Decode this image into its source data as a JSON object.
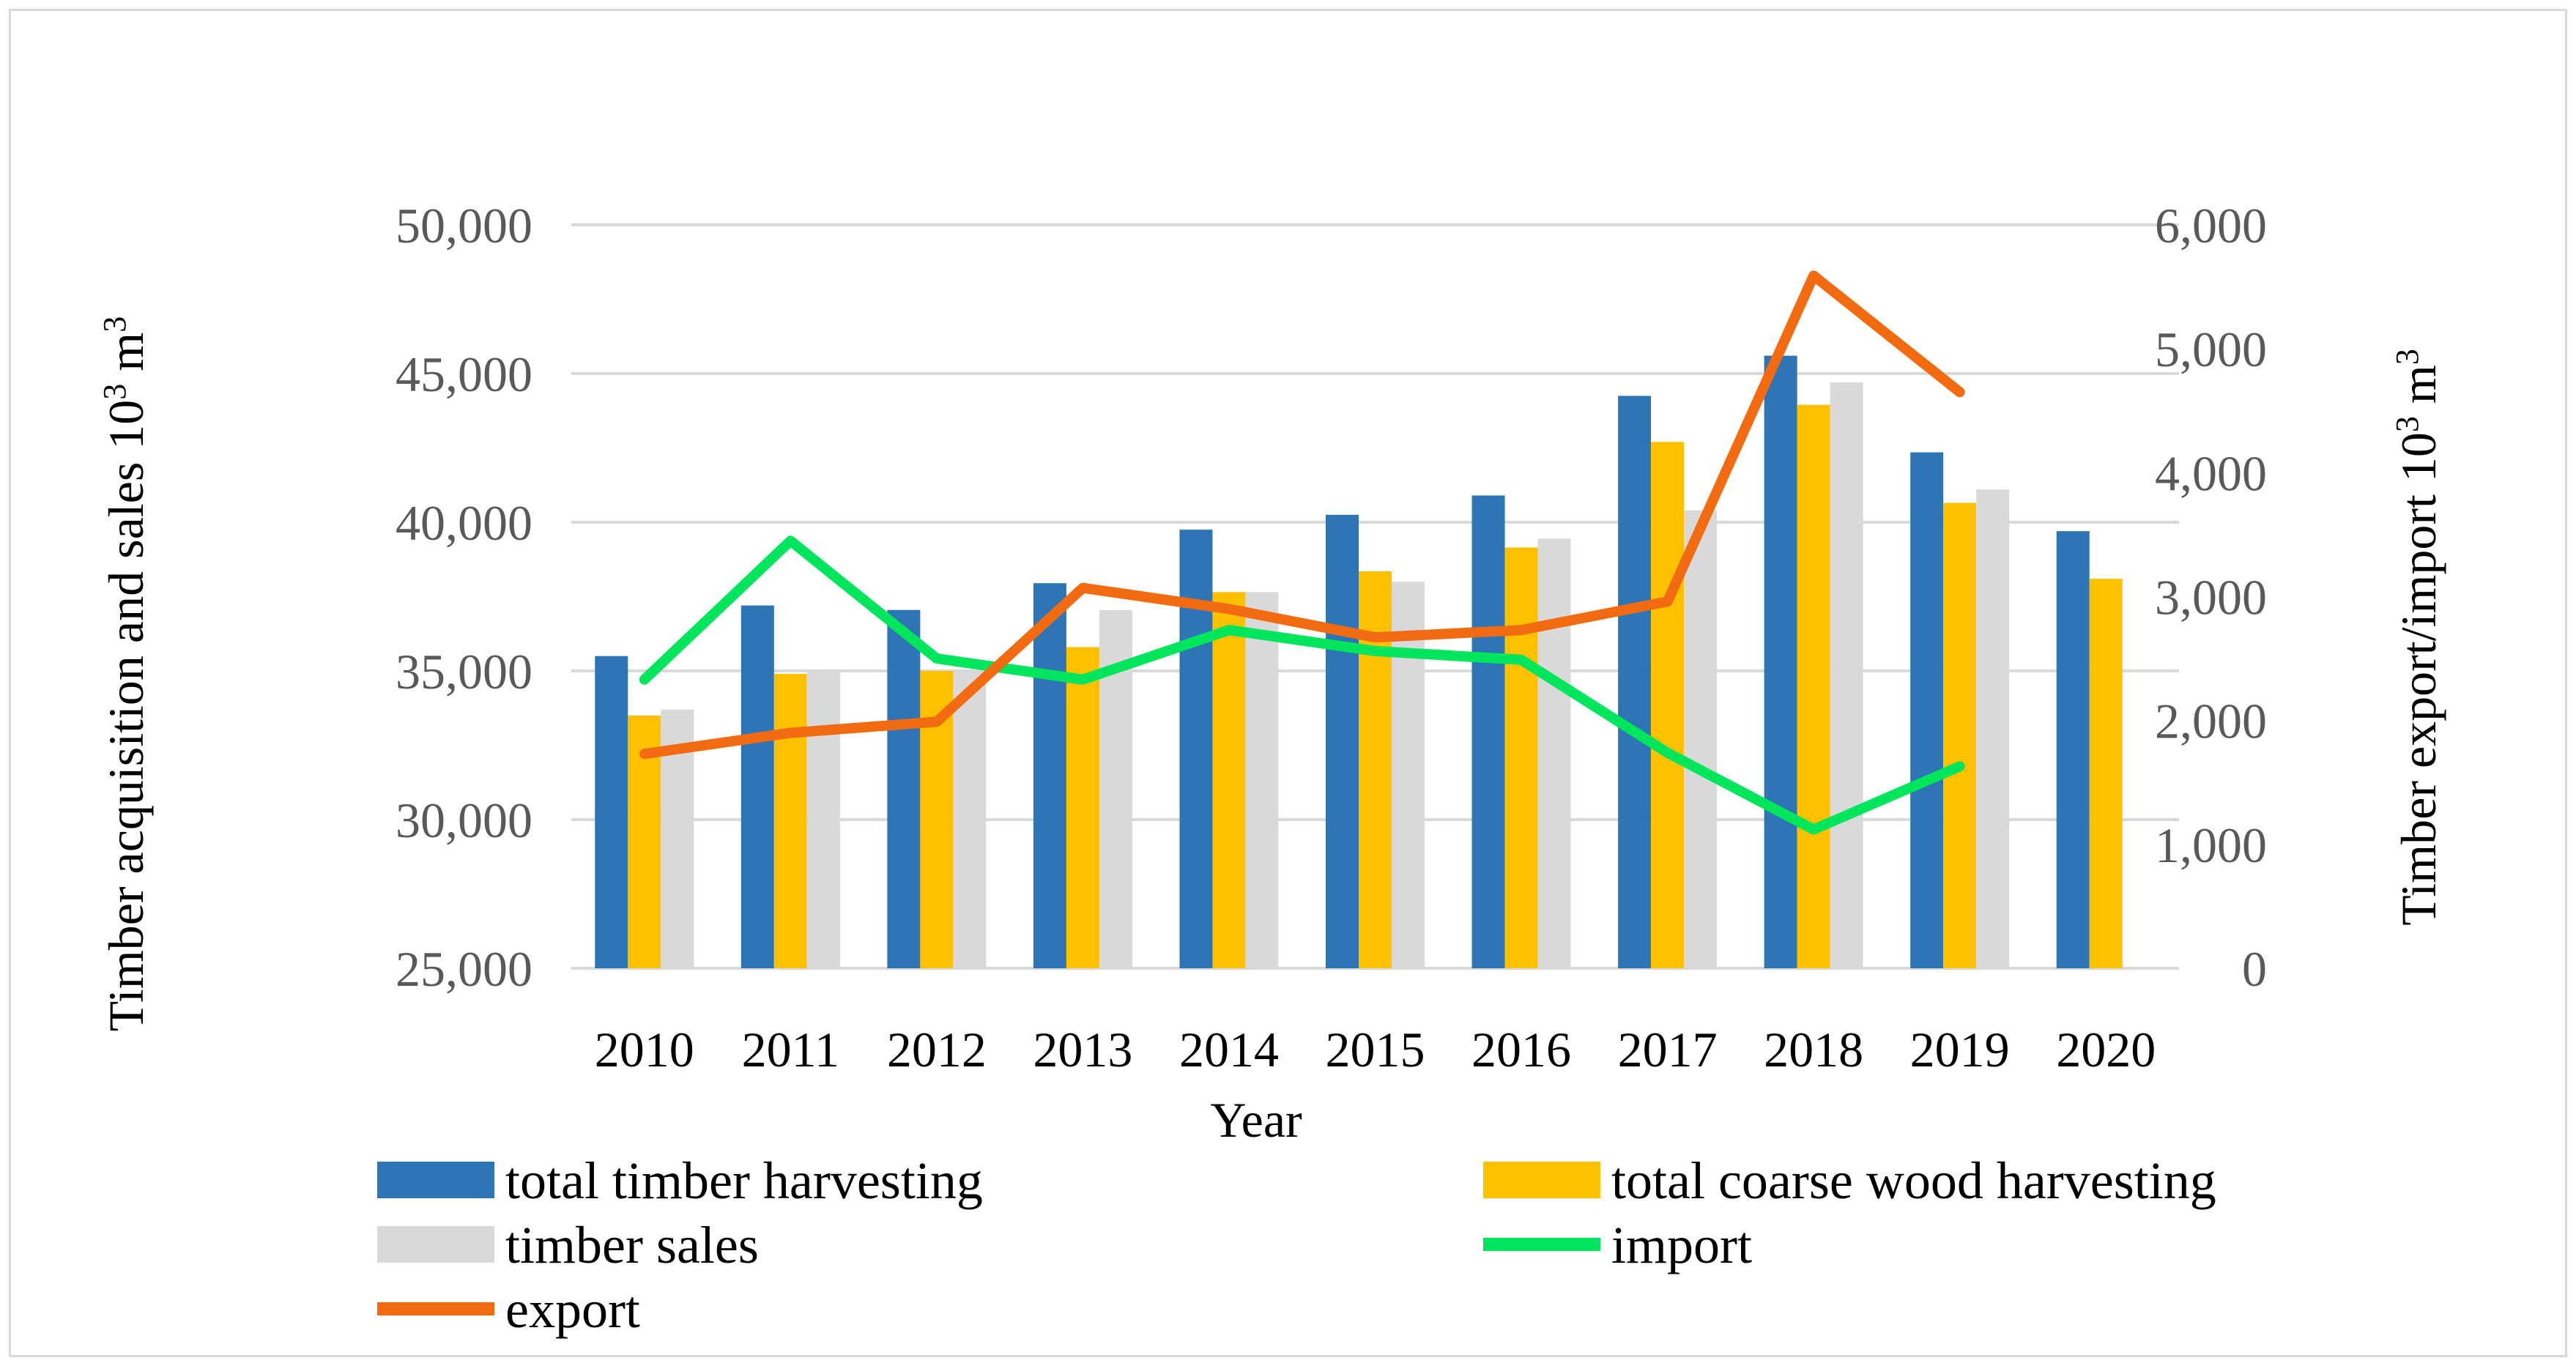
{
  "chart_data": {
    "type": "bar",
    "categories": [
      "2010",
      "2011",
      "2012",
      "2013",
      "2014",
      "2015",
      "2016",
      "2017",
      "2018",
      "2019",
      "2020"
    ],
    "xlabel": "Year",
    "ylabel_left": "Timber acquisition and sales 10",
    "ylabel_left_sup": "3",
    "ylabel_left_unit": " m",
    "ylabel_left_unit_sup": "3",
    "ylabel_right": "Timber export/import 10",
    "ylabel_right_sup": "3",
    "ylabel_right_unit": " m",
    "ylabel_right_unit_sup": "3",
    "ylim_left": [
      25000,
      50000
    ],
    "ylim_right": [
      0,
      6000
    ],
    "left_ticks": [
      25000,
      30000,
      35000,
      40000,
      45000,
      50000
    ],
    "left_tick_labels": [
      "25,000",
      "30,000",
      "35,000",
      "40,000",
      "45,000",
      "50,000"
    ],
    "right_ticks": [
      0,
      1000,
      2000,
      3000,
      4000,
      5000,
      6000
    ],
    "right_tick_labels": [
      "0",
      "1,000",
      "2,000",
      "3,000",
      "4,000",
      "5,000",
      "6,000"
    ],
    "grid": true,
    "legend_position": "bottom",
    "bar_series": [
      {
        "name": "total timber harvesting",
        "color": "#2E75B6",
        "values": [
          35500,
          37200,
          37050,
          37950,
          39750,
          40250,
          40900,
          44250,
          45600,
          42350,
          39700
        ]
      },
      {
        "name": "total coarse wood harvesting",
        "color": "#FFC000",
        "values": [
          33500,
          34900,
          35000,
          35800,
          37650,
          38350,
          39150,
          42700,
          43950,
          40650,
          38100
        ]
      },
      {
        "name": "timber sales",
        "color": "#D9D9D9",
        "values": [
          33700,
          35050,
          35050,
          37050,
          37650,
          38000,
          39450,
          40400,
          44700,
          41100,
          null
        ]
      }
    ],
    "line_series": [
      {
        "name": "import",
        "color": "#00E65C",
        "axis": "right",
        "values": [
          2330,
          3450,
          2500,
          2330,
          2730,
          2560,
          2490,
          1740,
          1120,
          1630,
          null
        ]
      },
      {
        "name": "export",
        "color": "#F26B10",
        "axis": "right",
        "values": [
          1730,
          1900,
          1990,
          3070,
          2900,
          2670,
          2730,
          2960,
          5590,
          4650,
          null
        ]
      }
    ]
  }
}
